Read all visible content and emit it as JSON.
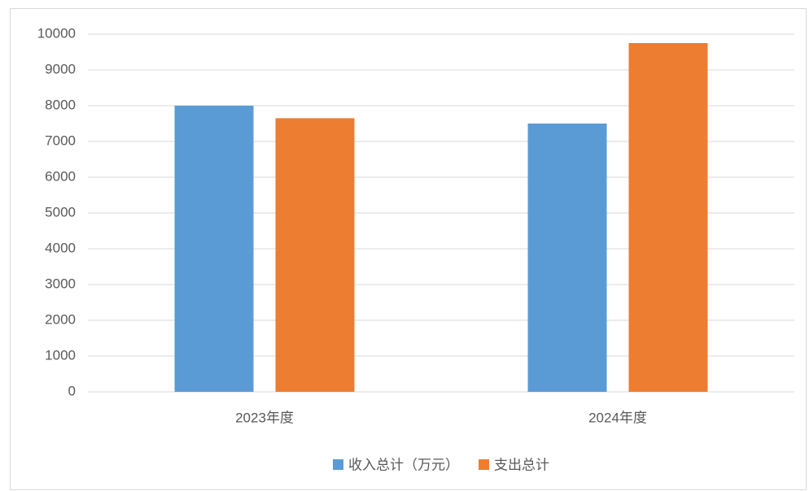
{
  "chart_data": {
    "type": "bar",
    "categories": [
      "2023年度",
      "2024年度"
    ],
    "series": [
      {
        "name": "收入总计（万元）",
        "color": "#5b9bd5",
        "values": [
          8000,
          7500
        ]
      },
      {
        "name": "支出总计",
        "color": "#ed7d31",
        "values": [
          7650,
          9750
        ]
      }
    ],
    "ylim": [
      0,
      10000
    ],
    "yticks": [
      0,
      1000,
      2000,
      3000,
      4000,
      5000,
      6000,
      7000,
      8000,
      9000,
      10000
    ],
    "grid": true,
    "legend": "bottom"
  }
}
